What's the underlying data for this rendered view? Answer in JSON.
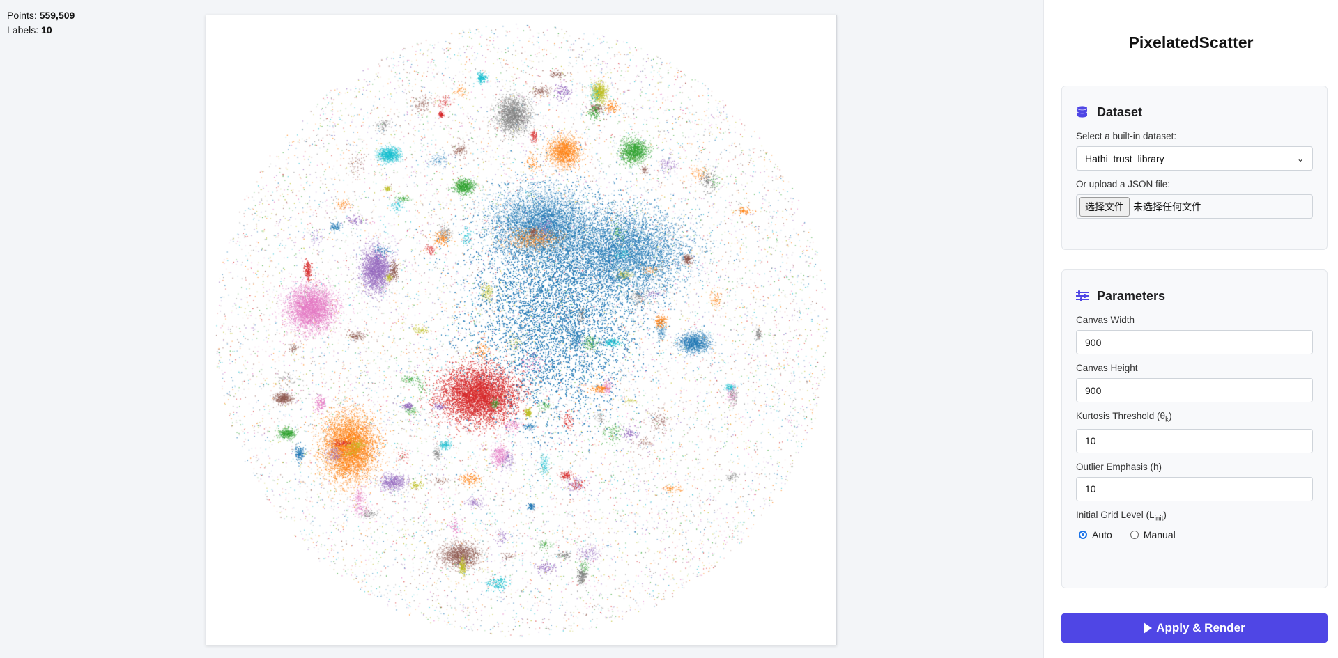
{
  "stats": {
    "points_label": "Points:",
    "points_value": "559,509",
    "labels_label": "Labels:",
    "labels_value": "10"
  },
  "scatter": {
    "description_colors": [
      "#1f77b4",
      "#ff7f0e",
      "#2ca02c",
      "#d62728",
      "#9467bd",
      "#8c564b",
      "#e377c2",
      "#7f7f7f",
      "#bcbd22",
      "#17becf"
    ]
  },
  "panel": {
    "title": "PixelatedScatter",
    "dataset": {
      "heading": "Dataset",
      "icon": "database-icon",
      "select_label": "Select a built-in dataset:",
      "selected_value": "Hathi_trust_library",
      "upload_label": "Or upload a JSON file:",
      "file_button": "选择文件",
      "file_status": "未选择任何文件"
    },
    "parameters": {
      "heading": "Parameters",
      "icon": "sliders-icon",
      "canvas_width_label": "Canvas Width",
      "canvas_width_value": "900",
      "canvas_height_label": "Canvas Height",
      "canvas_height_value": "900",
      "kurtosis_label": "Kurtosis Threshold (θ",
      "kurtosis_sub": "k",
      "kurtosis_value": "10",
      "outlier_label": "Outlier Emphasis (h)",
      "outlier_value": "10",
      "grid_label": "Initial Grid Level (L",
      "grid_sub": "init",
      "radio_auto": "Auto",
      "radio_manual": "Manual",
      "selected_radio": "Auto"
    },
    "apply_button": "Apply & Render",
    "accent_color": "#4f46e5"
  }
}
